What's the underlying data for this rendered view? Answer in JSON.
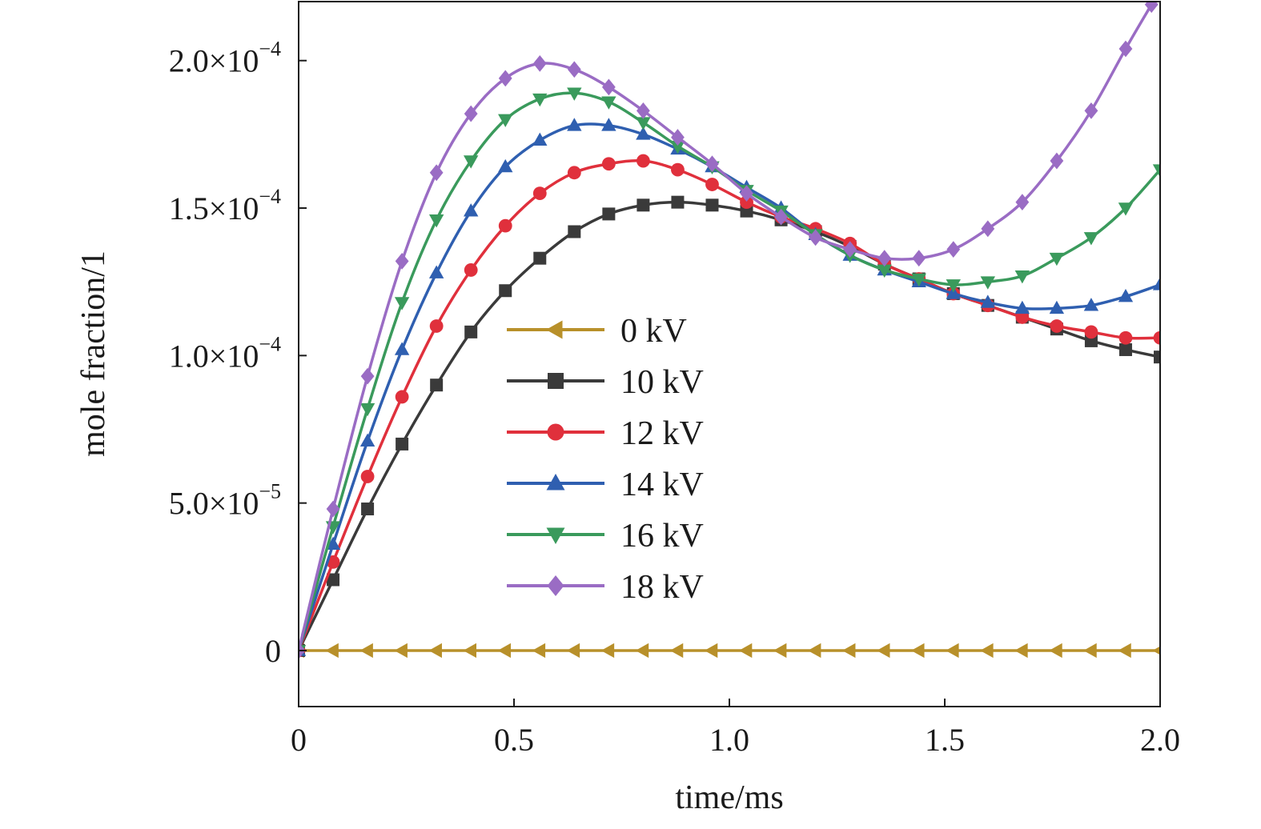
{
  "chart_data": {
    "type": "line",
    "xlabel": "time/ms",
    "ylabel": "mole fraction/1",
    "xlim": [
      0,
      2.0
    ],
    "ylim": [
      -1.9e-05,
      0.00022
    ],
    "grid": false,
    "legend_position": "center",
    "x_ticks": [
      {
        "value": 0,
        "label": "0"
      },
      {
        "value": 0.5,
        "label": "0.5"
      },
      {
        "value": 1.0,
        "label": "1.0"
      },
      {
        "value": 1.5,
        "label": "1.5"
      },
      {
        "value": 2.0,
        "label": "2.0"
      }
    ],
    "y_ticks": [
      {
        "value": 0,
        "mantissa": "0",
        "exponent": ""
      },
      {
        "value": 5e-05,
        "mantissa": "5.0×10",
        "exponent": "−5"
      },
      {
        "value": 0.0001,
        "mantissa": "1.0×10",
        "exponent": "−4"
      },
      {
        "value": 0.00015,
        "mantissa": "1.5×10",
        "exponent": "−4"
      },
      {
        "value": 0.0002,
        "mantissa": "2.0×10",
        "exponent": "−4"
      }
    ],
    "series": [
      {
        "name": "0 kV",
        "color": "#b8902a",
        "marker": "triangle-left",
        "x": [
          0,
          0.08,
          0.16,
          0.24,
          0.32,
          0.4,
          0.48,
          0.56,
          0.64,
          0.72,
          0.8,
          0.88,
          0.96,
          1.04,
          1.12,
          1.2,
          1.28,
          1.36,
          1.44,
          1.52,
          1.6,
          1.68,
          1.76,
          1.84,
          1.92,
          2.0
        ],
        "y": [
          0,
          0,
          0,
          0,
          0,
          0,
          0,
          0,
          0,
          0,
          0,
          0,
          0,
          0,
          0,
          0,
          0,
          0,
          0,
          0,
          0,
          0,
          0,
          0,
          0,
          0
        ]
      },
      {
        "name": "10 kV",
        "color": "#3a3a3a",
        "marker": "square",
        "x": [
          0,
          0.08,
          0.16,
          0.24,
          0.32,
          0.4,
          0.48,
          0.56,
          0.64,
          0.72,
          0.8,
          0.88,
          0.96,
          1.04,
          1.12,
          1.2,
          1.28,
          1.36,
          1.44,
          1.52,
          1.6,
          1.68,
          1.76,
          1.84,
          1.92,
          2.0
        ],
        "y": [
          0,
          2.4e-05,
          4.8e-05,
          7e-05,
          9e-05,
          0.000108,
          0.000122,
          0.000133,
          0.000142,
          0.000148,
          0.000151,
          0.000152,
          0.000151,
          0.000149,
          0.000146,
          0.000142,
          0.000137,
          0.000131,
          0.000126,
          0.000121,
          0.000117,
          0.000113,
          0.000109,
          0.000105,
          0.000102,
          9.95e-05
        ]
      },
      {
        "name": "12 kV",
        "color": "#e0303c",
        "marker": "circle",
        "x": [
          0,
          0.08,
          0.16,
          0.24,
          0.32,
          0.4,
          0.48,
          0.56,
          0.64,
          0.72,
          0.8,
          0.88,
          0.96,
          1.04,
          1.12,
          1.2,
          1.28,
          1.36,
          1.44,
          1.52,
          1.6,
          1.68,
          1.76,
          1.84,
          1.92,
          2.0
        ],
        "y": [
          0,
          3e-05,
          5.9e-05,
          8.6e-05,
          0.00011,
          0.000129,
          0.000144,
          0.000155,
          0.000162,
          0.000165,
          0.000166,
          0.000163,
          0.000158,
          0.000152,
          0.000147,
          0.000143,
          0.000138,
          0.000131,
          0.000126,
          0.000121,
          0.000117,
          0.000113,
          0.00011,
          0.000108,
          0.000106,
          0.000106
        ]
      },
      {
        "name": "14 kV",
        "color": "#2f5fb0",
        "marker": "triangle-up",
        "x": [
          0,
          0.08,
          0.16,
          0.24,
          0.32,
          0.4,
          0.48,
          0.56,
          0.64,
          0.72,
          0.8,
          0.88,
          0.96,
          1.04,
          1.12,
          1.2,
          1.28,
          1.36,
          1.44,
          1.52,
          1.6,
          1.68,
          1.76,
          1.84,
          1.92,
          2.0
        ],
        "y": [
          0,
          3.6e-05,
          7.1e-05,
          0.000102,
          0.000128,
          0.000149,
          0.000164,
          0.000173,
          0.000178,
          0.000178,
          0.000175,
          0.00017,
          0.000164,
          0.000157,
          0.00015,
          0.000141,
          0.000134,
          0.000129,
          0.000125,
          0.000121,
          0.000118,
          0.000116,
          0.000116,
          0.000117,
          0.00012,
          0.000124
        ]
      },
      {
        "name": "16 kV",
        "color": "#3a9a5c",
        "marker": "triangle-down",
        "x": [
          0,
          0.08,
          0.16,
          0.24,
          0.32,
          0.4,
          0.48,
          0.56,
          0.64,
          0.72,
          0.8,
          0.88,
          0.96,
          1.04,
          1.12,
          1.2,
          1.28,
          1.36,
          1.44,
          1.52,
          1.6,
          1.68,
          1.76,
          1.84,
          1.92,
          2.0
        ],
        "y": [
          0,
          4.2e-05,
          8.2e-05,
          0.000118,
          0.000146,
          0.000166,
          0.00018,
          0.000187,
          0.000189,
          0.000186,
          0.000179,
          0.000171,
          0.000164,
          0.000156,
          0.000149,
          0.000141,
          0.000134,
          0.000129,
          0.000126,
          0.000124,
          0.000125,
          0.000127,
          0.000133,
          0.00014,
          0.00015,
          0.000163
        ]
      },
      {
        "name": "18 kV",
        "color": "#9a6cc4",
        "marker": "diamond",
        "x": [
          0,
          0.08,
          0.16,
          0.24,
          0.32,
          0.4,
          0.48,
          0.56,
          0.64,
          0.72,
          0.8,
          0.88,
          0.96,
          1.04,
          1.12,
          1.2,
          1.28,
          1.36,
          1.44,
          1.52,
          1.6,
          1.68,
          1.76,
          1.84,
          1.92,
          1.98
        ],
        "y": [
          0,
          4.8e-05,
          9.3e-05,
          0.000132,
          0.000162,
          0.000182,
          0.000194,
          0.000199,
          0.000197,
          0.000191,
          0.000183,
          0.000174,
          0.000165,
          0.000155,
          0.000147,
          0.00014,
          0.000136,
          0.000133,
          0.000133,
          0.000136,
          0.000143,
          0.000152,
          0.000166,
          0.000183,
          0.000204,
          0.000219
        ]
      }
    ]
  }
}
